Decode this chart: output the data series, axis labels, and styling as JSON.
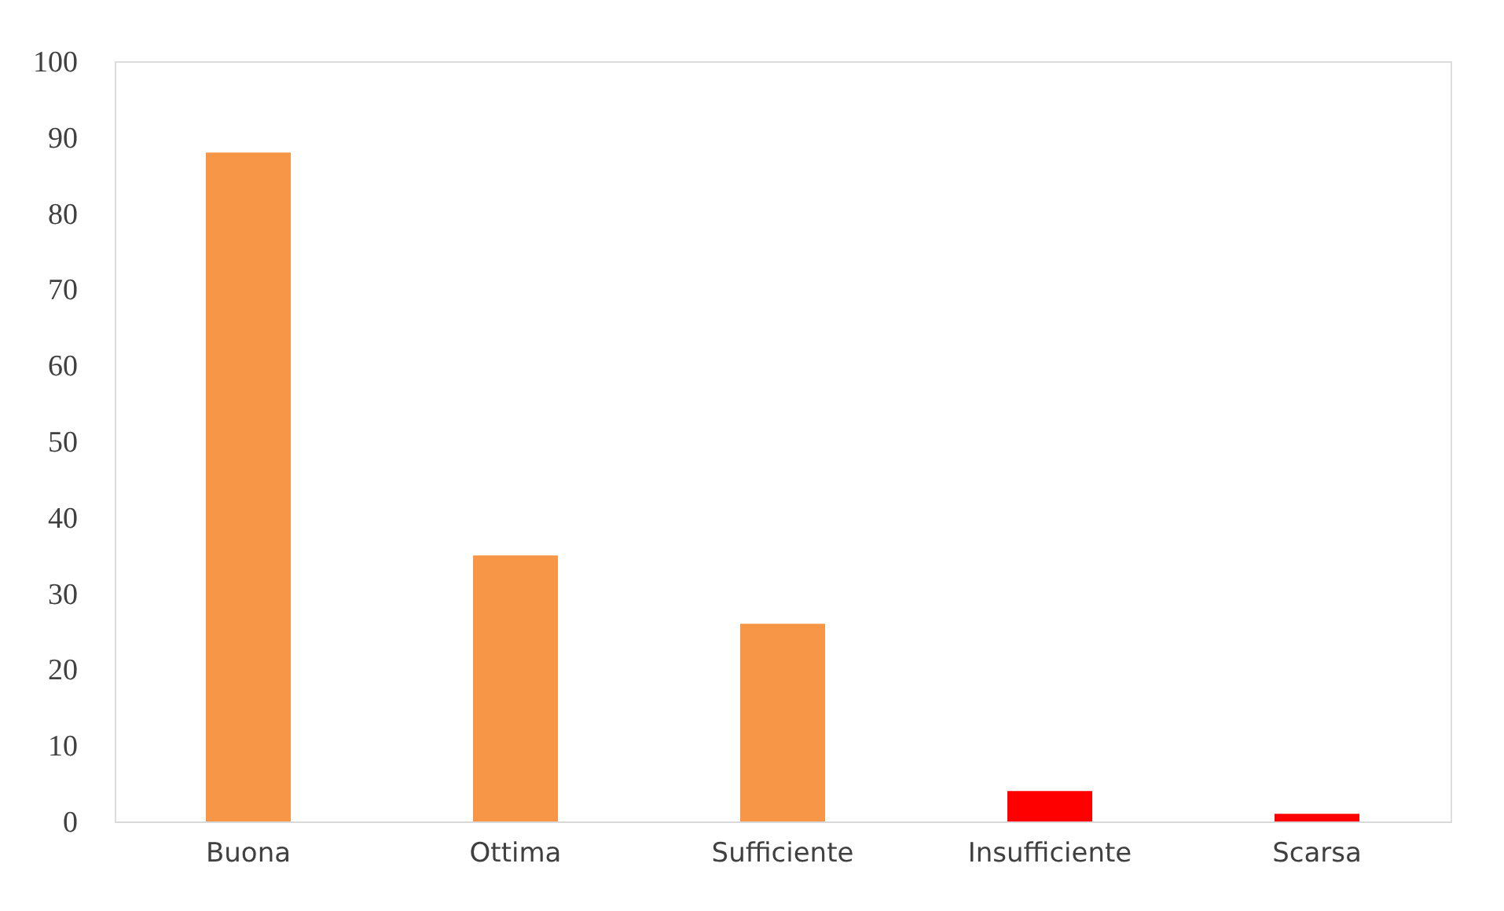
{
  "chart_data": {
    "type": "bar",
    "categories": [
      "Buona",
      "Ottima",
      "Sufficiente",
      "Insufficiente",
      "Scarsa"
    ],
    "values": [
      88,
      35,
      26,
      4,
      1
    ],
    "colors": [
      "#f79646",
      "#f79646",
      "#f79646",
      "#ff0000",
      "#ff0000"
    ],
    "ylim": [
      0,
      100
    ],
    "yticks": [
      0,
      10,
      20,
      30,
      40,
      50,
      60,
      70,
      80,
      90,
      100
    ],
    "grid": false,
    "legend": false
  }
}
